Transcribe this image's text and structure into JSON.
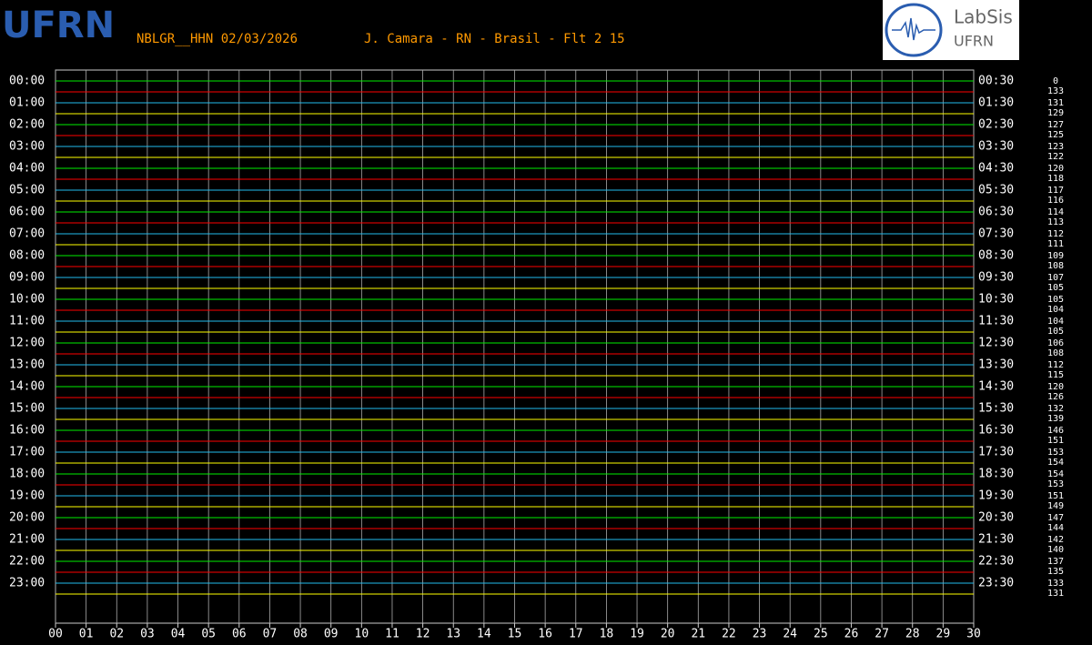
{
  "header": {
    "station": "NBLGR__HHN 02/03/2026",
    "location": "J. Camara - RN - Brasil - Flt 2 15"
  },
  "logos": {
    "left": "UFRN",
    "right_name": "LabSis",
    "right_org": "UFRN"
  },
  "trace_colors": [
    "#00ee00",
    "#ff0000",
    "#22bbee",
    "#ffff00"
  ],
  "left_labels": [
    "00:00",
    "01:00",
    "02:00",
    "03:00",
    "04:00",
    "05:00",
    "06:00",
    "07:00",
    "08:00",
    "09:00",
    "10:00",
    "11:00",
    "12:00",
    "13:00",
    "14:00",
    "15:00",
    "16:00",
    "17:00",
    "18:00",
    "19:00",
    "20:00",
    "21:00",
    "22:00",
    "23:00"
  ],
  "right_labels": [
    "00:30",
    "01:30",
    "02:30",
    "03:30",
    "04:30",
    "05:30",
    "06:30",
    "07:30",
    "08:30",
    "09:30",
    "10:30",
    "11:30",
    "12:30",
    "13:30",
    "14:30",
    "15:30",
    "16:30",
    "17:30",
    "18:30",
    "19:30",
    "20:30",
    "21:30",
    "22:30",
    "23:30"
  ],
  "row_numbers": [
    0,
    133,
    131,
    129,
    127,
    125,
    123,
    122,
    120,
    118,
    117,
    116,
    114,
    113,
    112,
    111,
    109,
    108,
    107,
    105,
    105,
    104,
    104,
    105,
    106,
    108,
    112,
    115,
    120,
    126,
    132,
    139,
    146,
    151,
    153,
    154,
    154,
    153,
    151,
    149,
    147,
    144,
    142,
    140,
    137,
    135,
    133,
    131
  ],
  "x_ticks": [
    "00",
    "01",
    "02",
    "03",
    "04",
    "05",
    "06",
    "07",
    "08",
    "09",
    "10",
    "11",
    "12",
    "13",
    "14",
    "15",
    "16",
    "17",
    "18",
    "19",
    "20",
    "21",
    "22",
    "23",
    "24",
    "25",
    "26",
    "27",
    "28",
    "29",
    "30"
  ]
}
